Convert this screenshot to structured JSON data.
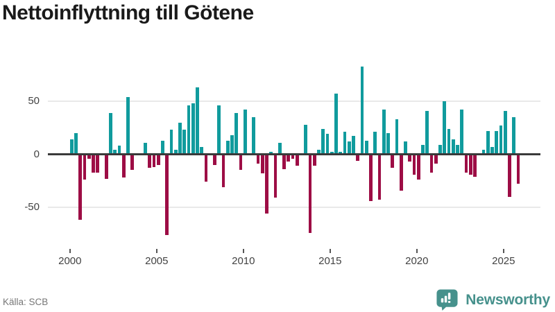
{
  "title": "Nettoinflyttning till Götene",
  "source": "Källa: SCB",
  "logo": {
    "text": "Newsworthy"
  },
  "colors": {
    "positive": "#109b9d",
    "negative": "#9d0d45",
    "grid": "#e9e9e9",
    "zero_line": "#3a3a3a",
    "axis_text": "#424242",
    "source_text": "#767676",
    "title_text": "#1a1a1a",
    "logo": "#46918c"
  },
  "chart_data": {
    "type": "bar",
    "title": "Nettoinflyttning till Götene",
    "x_unit": "quarter",
    "x_tick_labels": [
      "2000",
      "2005",
      "2010",
      "2015",
      "2020",
      "2025"
    ],
    "x_tick_indices": [
      0,
      20,
      40,
      60,
      80,
      100
    ],
    "y_ticks": [
      {
        "value": 50,
        "label": "50"
      },
      {
        "value": 0,
        "label": "0"
      },
      {
        "value": -50,
        "label": "-50"
      }
    ],
    "ylim": [
      -80,
      90
    ],
    "grid": "horizontal",
    "legend": "none",
    "values": [
      14,
      20,
      -62,
      -24,
      -4,
      -17,
      -17,
      0,
      -23,
      39,
      4,
      8,
      -22,
      54,
      -15,
      0,
      0,
      11,
      -13,
      -12,
      -10,
      13,
      -76,
      23,
      4,
      30,
      23,
      46,
      48,
      63,
      7,
      -26,
      0,
      -10,
      46,
      -31,
      13,
      18,
      39,
      -15,
      42,
      0,
      35,
      -9,
      -18,
      -56,
      2,
      -41,
      11,
      -14,
      -7,
      -4,
      -11,
      0,
      28,
      -74,
      -11,
      4,
      24,
      19,
      2,
      57,
      2,
      21,
      12,
      17,
      -6,
      83,
      13,
      -44,
      21,
      -43,
      42,
      20,
      -13,
      33,
      -34,
      12,
      -7,
      -19,
      -24,
      9,
      41,
      -17,
      -9,
      9,
      50,
      24,
      14,
      9,
      42,
      -17,
      -19,
      -21,
      0,
      4,
      22,
      7,
      22,
      27,
      41,
      -40,
      35,
      -28
    ]
  }
}
